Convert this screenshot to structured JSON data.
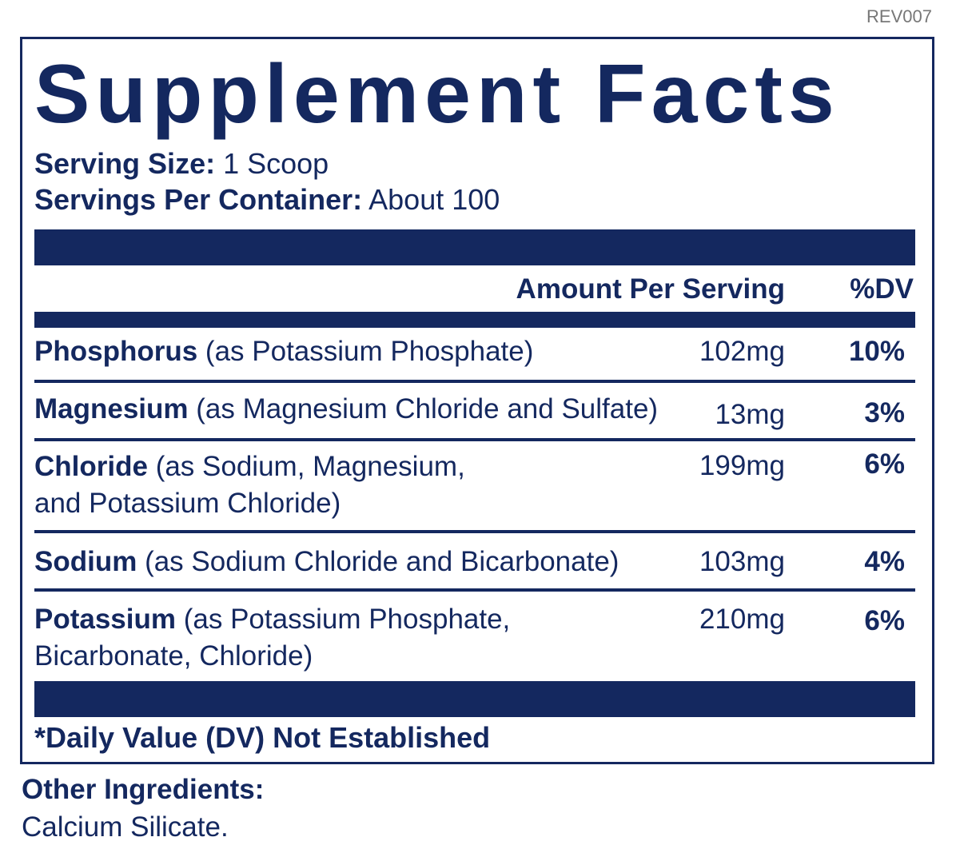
{
  "rev": "REV007",
  "title": "Supplement Facts",
  "serving": {
    "size_label": "Serving Size:",
    "size": "1 Scoop",
    "per_label": "Servings Per Container:",
    "per": "About 100"
  },
  "table": {
    "headers": [
      "Amount Per Serving",
      "%DV"
    ],
    "rows": [
      {
        "name": "Phosphorus",
        "source": "(as Potassium Phosphate)",
        "amount": "102mg",
        "dv": "10%"
      },
      {
        "name": "Magnesium",
        "source": "(as Magnesium Chloride and Sulfate)",
        "amount": "13mg",
        "dv": "3%"
      },
      {
        "name": "Chloride",
        "source": "(as Sodium, Magnesium,\nand Potassium Chloride)",
        "amount": "199mg",
        "dv": "6%"
      },
      {
        "name": "Sodium",
        "source": "(as Sodium Chloride and Bicarbonate)",
        "amount": "103mg",
        "dv": "4%"
      },
      {
        "name": "Potassium",
        "source": "(as Potassium Phosphate,\nBicarbonate, Chloride)",
        "amount": "210mg",
        "dv": "6%"
      }
    ]
  },
  "footnote": "*Daily Value (DV) Not Established",
  "other": {
    "label": "Other Ingredients:",
    "text": "Calcium Silicate."
  }
}
